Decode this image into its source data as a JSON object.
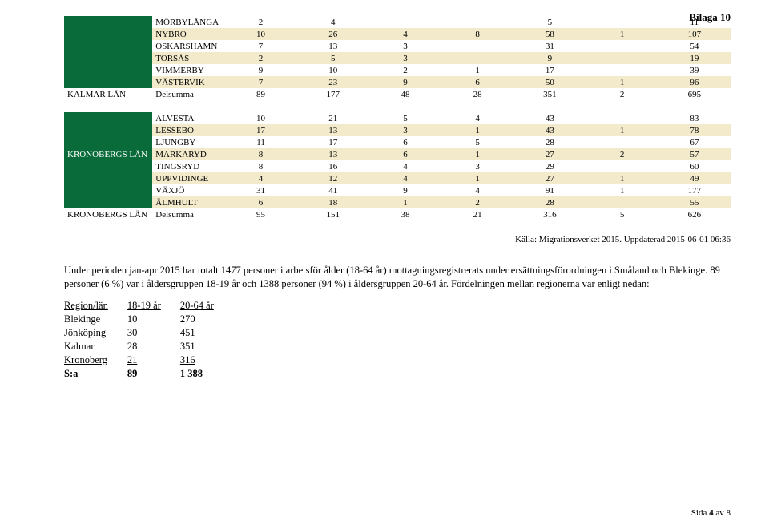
{
  "header": {
    "label": "Bilaga 10"
  },
  "colors": {
    "lan_bg": "#0a6b3a",
    "lan_fg": "#ffffff",
    "stripe_bg": "#f2eacb",
    "page_bg": "#ffffff"
  },
  "table1_columns": 7,
  "block1": {
    "lan_label": "KALMAR LÄN",
    "rows": [
      {
        "name": "MÖRBYLÅNGA",
        "c": [
          "2",
          "4",
          "",
          "",
          "5",
          "",
          "11"
        ]
      },
      {
        "name": "NYBRO",
        "c": [
          "10",
          "26",
          "4",
          "8",
          "58",
          "1",
          "107"
        ]
      },
      {
        "name": "OSKARSHAMN",
        "c": [
          "7",
          "13",
          "3",
          "",
          "31",
          "",
          "54"
        ]
      },
      {
        "name": "TORSÅS",
        "c": [
          "2",
          "5",
          "3",
          "",
          "9",
          "",
          "19"
        ]
      },
      {
        "name": "VIMMERBY",
        "c": [
          "9",
          "10",
          "2",
          "1",
          "17",
          "",
          "39"
        ]
      },
      {
        "name": "VÄSTERVIK",
        "c": [
          "7",
          "23",
          "9",
          "6",
          "50",
          "1",
          "96"
        ]
      }
    ],
    "sum": {
      "name": "Delsumma",
      "c": [
        "89",
        "177",
        "48",
        "28",
        "351",
        "2",
        "695"
      ]
    }
  },
  "block2": {
    "lan_label": "KRONOBERGS LÄN",
    "rows": [
      {
        "name": "ALVESTA",
        "c": [
          "10",
          "21",
          "5",
          "4",
          "43",
          "",
          "83"
        ]
      },
      {
        "name": "LESSEBO",
        "c": [
          "17",
          "13",
          "3",
          "1",
          "43",
          "1",
          "78"
        ]
      },
      {
        "name": "LJUNGBY",
        "c": [
          "11",
          "17",
          "6",
          "5",
          "28",
          "",
          "67"
        ]
      },
      {
        "name": "MARKARYD",
        "c": [
          "8",
          "13",
          "6",
          "1",
          "27",
          "2",
          "57"
        ]
      },
      {
        "name": "TINGSRYD",
        "c": [
          "8",
          "16",
          "4",
          "3",
          "29",
          "",
          "60"
        ]
      },
      {
        "name": "UPPVIDINGE",
        "c": [
          "4",
          "12",
          "4",
          "1",
          "27",
          "1",
          "49"
        ]
      },
      {
        "name": "VÄXJÖ",
        "c": [
          "31",
          "41",
          "9",
          "4",
          "91",
          "1",
          "177"
        ]
      },
      {
        "name": "ÄLMHULT",
        "c": [
          "6",
          "18",
          "1",
          "2",
          "28",
          "",
          "55"
        ]
      }
    ],
    "sum_prefix": "KRONOBERGS LÄN",
    "sum": {
      "name": "Delsumma",
      "c": [
        "95",
        "151",
        "38",
        "21",
        "316",
        "5",
        "626"
      ]
    }
  },
  "source_line": "Källa: Migrationsverket 2015. Uppdaterad 2015-06-01 06:36",
  "paragraph": "Under perioden jan-apr 2015 har totalt 1477 personer i arbetsför ålder (18-64 år) mottagningsregistrerats under ersättningsförordningen i Småland och Blekinge. 89 personer (6 %) var i åldersgruppen 18-19 år och 1388 personer (94 %) i åldersgruppen 20-64 år. Fördelningen mellan regionerna var enligt nedan:",
  "mini": {
    "header": [
      "Region/län",
      "18-19 år",
      "20-64 år"
    ],
    "rows": [
      [
        "Blekinge",
        "10",
        "270"
      ],
      [
        "Jönköping",
        "30",
        "451"
      ],
      [
        "Kalmar",
        "28",
        "351"
      ],
      [
        "Kronoberg",
        "21",
        "316"
      ]
    ],
    "sum": [
      "S:a",
      "89",
      "1 388"
    ]
  },
  "footer": {
    "prefix": "Sida ",
    "page": "4",
    "of_prefix": " av ",
    "total": "8"
  }
}
